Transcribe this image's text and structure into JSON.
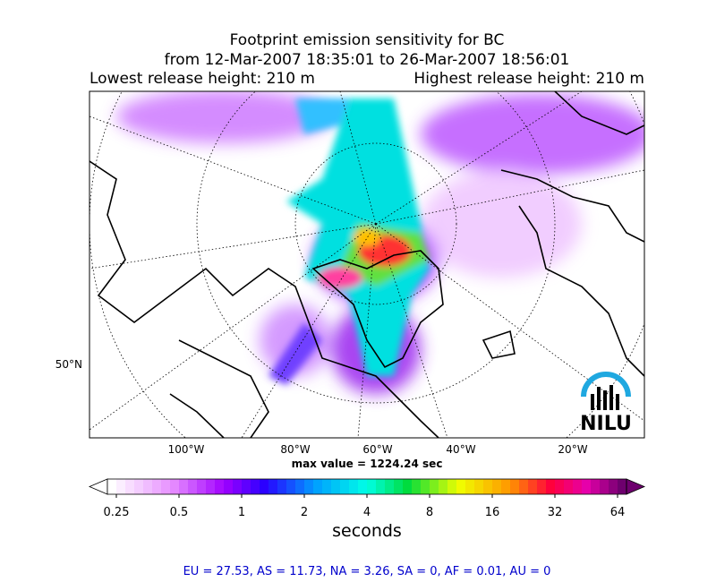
{
  "title": [
    "Footprint emission sensitivity for BC",
    "from 12-Mar-2007 18:35:01 to 26-Mar-2007 18:56:01"
  ],
  "release": {
    "lowest": "Lowest release height: 210 m",
    "highest": "Highest release height: 210 m"
  },
  "map": {
    "lat_labels": [
      "50°N"
    ],
    "lon_labels": [
      "100°W",
      "80°W",
      "60°W",
      "40°W",
      "20°W"
    ],
    "max_value": "max value = 1224.24 sec",
    "logo": "NILU"
  },
  "colorbar": {
    "ticks": [
      "0.25",
      "0.5",
      "1",
      "2",
      "4",
      "8",
      "16",
      "32",
      "64"
    ],
    "label": "seconds"
  },
  "footer": "EU = 27.53,  AS = 11.73,  NA = 3.26,  SA = 0,  AF = 0.01,  AU = 0"
}
